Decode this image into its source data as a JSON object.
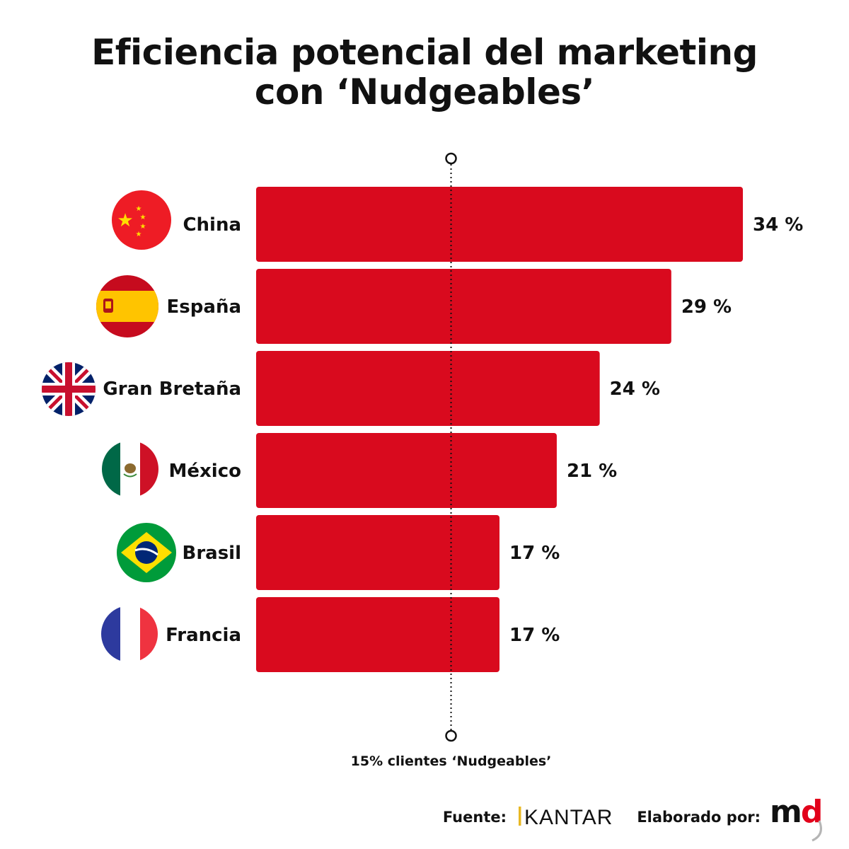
{
  "title_lines": [
    "Eficiencia potencial del marketing",
    "con ‘Nudgeables’"
  ],
  "chart_data": {
    "type": "bar",
    "orientation": "horizontal",
    "title": "Eficiencia potencial del marketing con ‘Nudgeables’",
    "categories": [
      "China",
      "España",
      "Gran Bretaña",
      "México",
      "Brasil",
      "Francia"
    ],
    "values": [
      34,
      29,
      24,
      21,
      17,
      17
    ],
    "value_labels": [
      "34 %",
      "29 %",
      "24 %",
      "21 %",
      "17 %",
      "17 %"
    ],
    "flags": [
      "china-flag-icon",
      "spain-flag-icon",
      "uk-flag-icon",
      "mexico-flag-icon",
      "brazil-flag-icon",
      "france-flag-icon"
    ],
    "xlim": [
      0,
      34
    ],
    "reference_line": {
      "value": 15,
      "label": "15% clientes ‘Nudgeables’"
    },
    "bar_color": "#d90a1e"
  },
  "footer": {
    "source_label": "Fuente:",
    "source_brand": "KANTAR",
    "made_by_label": "Elaborado por:",
    "made_by_brand": "md"
  },
  "colors": {
    "bar": "#d90a1e",
    "text": "#111111",
    "brand_red": "#e2001a"
  }
}
